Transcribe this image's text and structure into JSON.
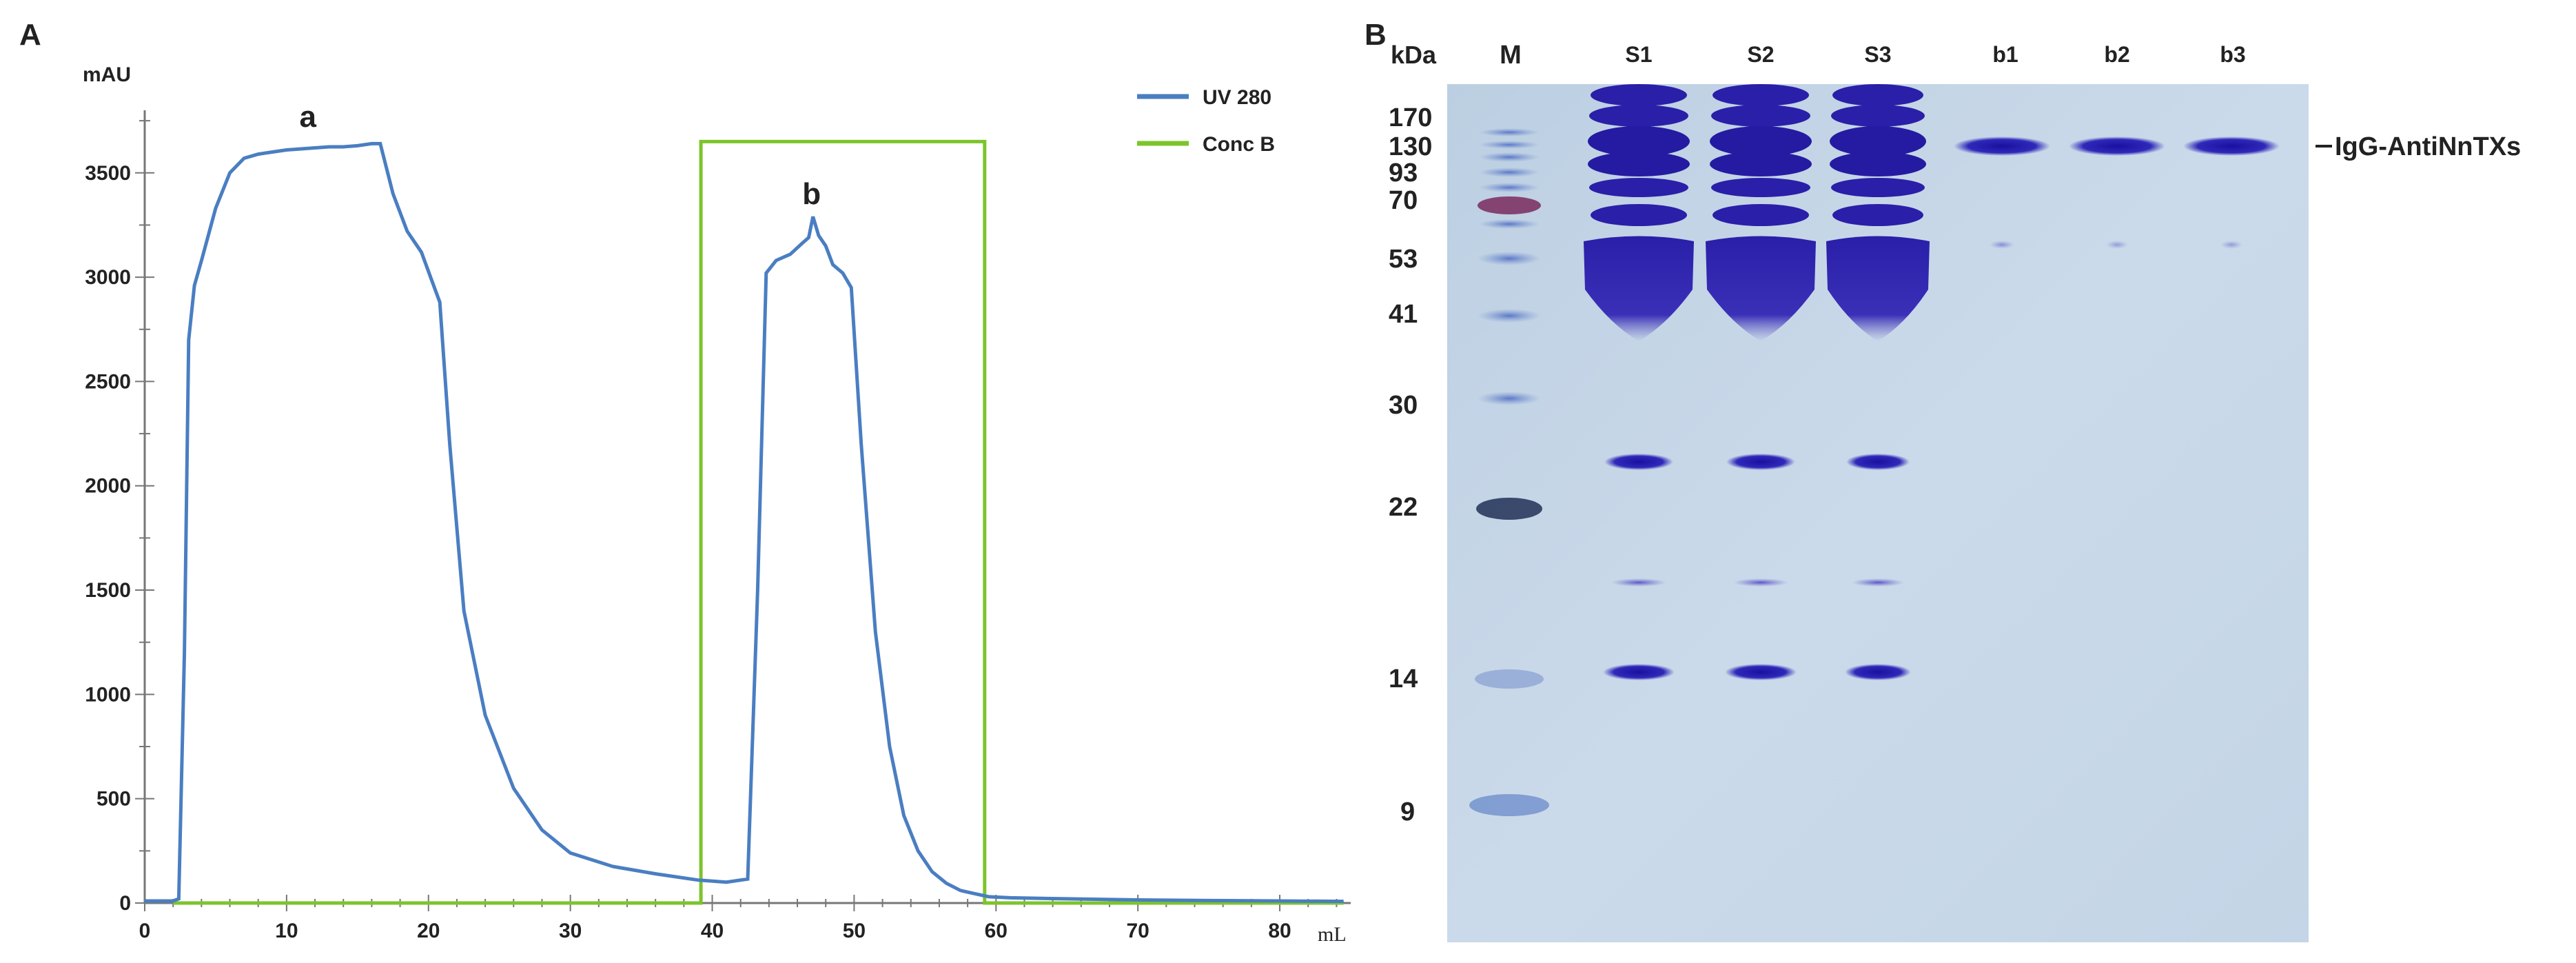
{
  "panels": {
    "a_label": "A",
    "b_label": "B"
  },
  "colors": {
    "uv": "#4a7ec2",
    "conc": "#7dc42c",
    "axis": "#777777",
    "gel_bg": "#c6d6e6",
    "band": "#2a1fa8"
  },
  "chart_data": [
    {
      "type": "line",
      "ylabel": "mAU",
      "xlabel": "mL",
      "xlim": [
        0,
        85
      ],
      "ylim": [
        0,
        3800
      ],
      "x_ticks": [
        "0",
        "10",
        "20",
        "30",
        "40",
        "50",
        "60",
        "70",
        "80"
      ],
      "y_ticks": [
        "0",
        "500",
        "1000",
        "1500",
        "2000",
        "2500",
        "3000",
        "3500"
      ],
      "legend_placement": "top-right",
      "legend": [
        "UV 280",
        "Conc B"
      ],
      "annotations": [
        {
          "text": "a",
          "x": 11.5,
          "y": 3720
        },
        {
          "text": "b",
          "x": 47,
          "y": 3350
        }
      ],
      "series": [
        {
          "name": "UV 280",
          "color": "#4a7ec2",
          "x": [
            0,
            2,
            2.4,
            2.8,
            3.1,
            3.5,
            4,
            5,
            6,
            7,
            8,
            9,
            10,
            11,
            12,
            13,
            14,
            15,
            16,
            16.6,
            17.5,
            18.5,
            19.5,
            20.2,
            20.8,
            21.5,
            22.5,
            24,
            26,
            28,
            30,
            33,
            36,
            39,
            41,
            42.5,
            43.2,
            43.8,
            44.5,
            45.5,
            46.3,
            46.8,
            47.1,
            47.5,
            48,
            48.5,
            49.2,
            49.8,
            50.5,
            51.5,
            52.5,
            53.5,
            54.5,
            55.5,
            56.5,
            57.5,
            58.5,
            59.5,
            61,
            65,
            70,
            75,
            80,
            84.5
          ],
          "y": [
            10,
            10,
            20,
            1200,
            2700,
            2960,
            3080,
            3330,
            3500,
            3570,
            3590,
            3600,
            3610,
            3615,
            3620,
            3625,
            3625,
            3630,
            3640,
            3640,
            3400,
            3220,
            3120,
            2990,
            2880,
            2200,
            1400,
            900,
            550,
            350,
            240,
            175,
            140,
            110,
            100,
            115,
            1500,
            3020,
            3080,
            3110,
            3160,
            3190,
            3290,
            3200,
            3150,
            3060,
            3020,
            2950,
            2200,
            1300,
            750,
            420,
            250,
            150,
            95,
            60,
            45,
            30,
            25,
            20,
            15,
            12,
            10,
            8
          ]
        },
        {
          "name": "Conc B",
          "color": "#7dc42c",
          "x": [
            2,
            39.2,
            39.2,
            59.2,
            59.2,
            84.5
          ],
          "y": [
            0,
            0,
            3650,
            3650,
            0,
            0
          ]
        }
      ]
    },
    {
      "type": "other",
      "unit_label": "kDa",
      "lanes": [
        "M",
        "S1",
        "S2",
        "S3",
        "b1",
        "b2",
        "b3"
      ],
      "marker_sizes": [
        "170",
        "130",
        "93",
        "70",
        "53",
        "41",
        "30",
        "22",
        "14",
        "9"
      ],
      "band_label": "IgG-AntiNnTXs"
    }
  ]
}
